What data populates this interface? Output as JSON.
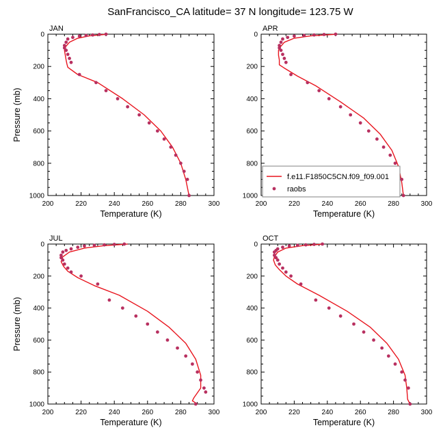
{
  "figure": {
    "title": "SanFrancisco_CA  latitude= 37 N longitude= 123.75 W"
  },
  "colors": {
    "model_line": "#e8141d",
    "obs_marker": "#b83060",
    "axis": "#000000",
    "legend_border": "#808080"
  },
  "legend": {
    "placement": "lower-right of APR panel",
    "entries": [
      {
        "label": "f.e11.F1850C5CN.f09_f09.001",
        "kind": "line"
      },
      {
        "label": "raobs",
        "kind": "marker"
      }
    ]
  },
  "chart_data": [
    {
      "type": "line",
      "panel": "JAN",
      "title": "JAN",
      "xlabel": "Temperature (K)",
      "ylabel": "Pressure (mb)",
      "xlim": [
        200,
        300
      ],
      "ylim": [
        1000,
        0
      ],
      "y_inverted": true,
      "xticks": [
        200,
        220,
        240,
        260,
        280,
        300
      ],
      "yticks": [
        0,
        200,
        400,
        600,
        800,
        1000
      ],
      "show_xlabel": true,
      "show_ylabel": true,
      "series": [
        {
          "kind": "line",
          "x": [
            236,
            225,
            218,
            213,
            210.5,
            210,
            210.5,
            211,
            211.5,
            212,
            218,
            230,
            245,
            258,
            268,
            275,
            280,
            283,
            285
          ],
          "y": [
            0,
            10,
            25,
            50,
            80,
            100,
            130,
            160,
            185,
            205,
            250,
            300,
            400,
            500,
            600,
            700,
            800,
            900,
            1000
          ]
        },
        {
          "kind": "scatter",
          "x": [
            235,
            231,
            227,
            223,
            219,
            215,
            212,
            211,
            210,
            210,
            211,
            212,
            213,
            214,
            219,
            229,
            235,
            242,
            248,
            255,
            261,
            266,
            270,
            274,
            277,
            280,
            282,
            284,
            285
          ],
          "y": [
            0,
            2,
            5,
            8,
            12,
            20,
            30,
            50,
            70,
            85,
            100,
            125,
            150,
            175,
            250,
            300,
            350,
            400,
            450,
            500,
            550,
            600,
            650,
            700,
            750,
            800,
            850,
            900,
            1000
          ]
        }
      ]
    },
    {
      "type": "line",
      "panel": "APR",
      "title": "APR",
      "xlabel": "Temperature (K)",
      "ylabel": "Pressure (mb)",
      "xlim": [
        200,
        300
      ],
      "ylim": [
        1000,
        0
      ],
      "y_inverted": true,
      "xticks": [
        200,
        220,
        240,
        260,
        280,
        300
      ],
      "yticks": [
        0,
        200,
        400,
        600,
        800,
        1000
      ],
      "show_xlabel": true,
      "show_ylabel": false,
      "series": [
        {
          "kind": "line",
          "x": [
            246,
            230,
            220,
            214,
            211.5,
            210.5,
            210.5,
            211,
            211,
            214,
            222,
            233,
            248,
            262,
            272,
            279,
            283,
            285,
            286
          ],
          "y": [
            0,
            10,
            25,
            50,
            80,
            100,
            130,
            160,
            190,
            210,
            260,
            320,
            420,
            520,
            620,
            720,
            820,
            920,
            1000
          ]
        },
        {
          "kind": "scatter",
          "x": [
            245,
            238,
            232,
            226,
            220,
            216,
            213,
            212,
            211,
            211,
            212,
            213,
            214,
            215,
            218,
            228,
            235,
            241,
            248,
            254,
            260,
            265,
            270,
            274,
            278,
            281,
            283,
            285,
            286
          ],
          "y": [
            0,
            2,
            5,
            8,
            12,
            20,
            30,
            50,
            70,
            85,
            100,
            125,
            150,
            175,
            250,
            300,
            350,
            400,
            450,
            500,
            550,
            600,
            650,
            700,
            750,
            800,
            850,
            900,
            1000
          ]
        }
      ]
    },
    {
      "type": "line",
      "panel": "JUL",
      "title": "JUL",
      "xlabel": "Temperature (K)",
      "ylabel": "Pressure (mb)",
      "xlim": [
        200,
        300
      ],
      "ylim": [
        1000,
        0
      ],
      "y_inverted": true,
      "xticks": [
        200,
        220,
        240,
        260,
        280,
        300
      ],
      "yticks": [
        0,
        200,
        400,
        600,
        800,
        1000
      ],
      "show_xlabel": true,
      "show_ylabel": true,
      "series": [
        {
          "kind": "line",
          "x": [
            248,
            234,
            222,
            213,
            209,
            208,
            209.5,
            212,
            218,
            228,
            243,
            260,
            273,
            283,
            289,
            292,
            292,
            288,
            287,
            290
          ],
          "y": [
            0,
            10,
            25,
            50,
            80,
            110,
            140,
            170,
            210,
            260,
            320,
            420,
            520,
            620,
            720,
            820,
            900,
            960,
            980,
            1000
          ]
        },
        {
          "kind": "scatter",
          "x": [
            246,
            240,
            234,
            228,
            222,
            218,
            214,
            211,
            209,
            208,
            208,
            209,
            210,
            212,
            214,
            220,
            230,
            237,
            245,
            253,
            260,
            266,
            272,
            278,
            283,
            287,
            290,
            292,
            294,
            295,
            289
          ],
          "y": [
            0,
            2,
            5,
            8,
            12,
            20,
            30,
            40,
            50,
            70,
            85,
            100,
            125,
            150,
            175,
            200,
            250,
            350,
            400,
            450,
            500,
            550,
            600,
            650,
            700,
            750,
            800,
            850,
            900,
            925,
            1000
          ]
        }
      ]
    },
    {
      "type": "line",
      "panel": "OCT",
      "title": "OCT",
      "xlabel": "Temperature (K)",
      "ylabel": "Pressure (mb)",
      "xlim": [
        200,
        300
      ],
      "ylim": [
        1000,
        0
      ],
      "y_inverted": true,
      "xticks": [
        200,
        220,
        240,
        260,
        280,
        300
      ],
      "yticks": [
        0,
        200,
        400,
        600,
        800,
        1000
      ],
      "show_xlabel": true,
      "show_ylabel": false,
      "series": [
        {
          "kind": "line",
          "x": [
            238,
            225,
            215,
            210,
            208,
            207.5,
            208.5,
            211,
            215,
            222,
            235,
            252,
            266,
            276,
            283,
            287,
            288,
            288.5,
            290
          ],
          "y": [
            0,
            10,
            25,
            50,
            80,
            100,
            130,
            160,
            200,
            250,
            320,
            420,
            520,
            620,
            720,
            820,
            900,
            970,
            1000
          ]
        },
        {
          "kind": "scatter",
          "x": [
            237,
            232,
            227,
            222,
            217,
            213,
            210,
            209,
            208,
            208,
            209,
            210,
            211,
            213,
            215,
            218,
            224,
            233,
            241,
            248,
            256,
            262,
            268,
            273,
            277,
            281,
            285,
            287,
            289,
            290
          ],
          "y": [
            0,
            2,
            5,
            8,
            12,
            20,
            30,
            40,
            50,
            70,
            85,
            100,
            125,
            150,
            175,
            200,
            250,
            350,
            400,
            450,
            500,
            550,
            600,
            650,
            700,
            750,
            800,
            850,
            900,
            1000
          ]
        }
      ]
    }
  ]
}
